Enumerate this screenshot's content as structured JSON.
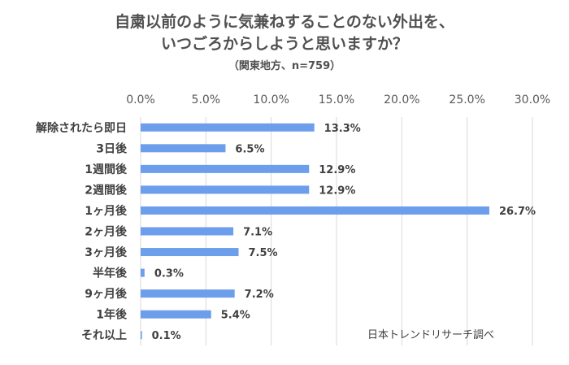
{
  "chart_data": {
    "type": "bar",
    "orientation": "horizontal",
    "title_line1": "自粛以前のように気兼ねすることのない外出を、",
    "title_line2": "いつごろからしようと思いますか？",
    "subtitle": "（関東地方、n=759）",
    "categories": [
      "解除されたら即日",
      "3日後",
      "1週間後",
      "2週間後",
      "1ヶ月後",
      "2ヶ月後",
      "3ヶ月後",
      "半年後",
      "9ヶ月後",
      "1年後",
      "それ以上"
    ],
    "values": [
      13.3,
      6.5,
      12.9,
      12.9,
      26.7,
      7.1,
      7.5,
      0.3,
      7.2,
      5.4,
      0.1
    ],
    "data_labels": [
      "13.3%",
      "6.5%",
      "12.9%",
      "12.9%",
      "26.7%",
      "7.1%",
      "7.5%",
      "0.3%",
      "7.2%",
      "5.4%",
      "0.1%"
    ],
    "x_ticks": [
      "0.0%",
      "5.0%",
      "10.0%",
      "15.0%",
      "20.0%",
      "25.0%",
      "30.0%"
    ],
    "xlim": [
      0,
      30
    ],
    "grid": true,
    "bar_color": "#6d9eeb",
    "source_note": "日本トレンドリサーチ調べ"
  }
}
